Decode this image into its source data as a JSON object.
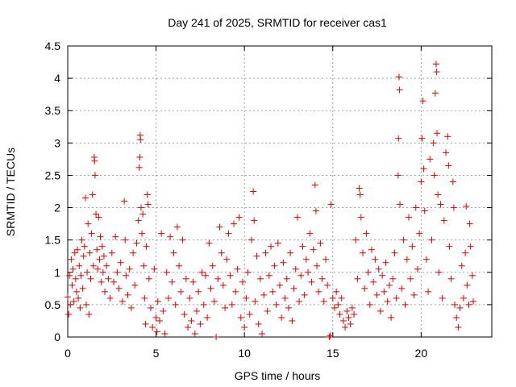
{
  "chart_data": {
    "type": "scatter",
    "title": "Day 241 of 2025, SRMTID for receiver cas1",
    "xlabel": "GPS time / hours",
    "ylabel": "SRMTID / TECUs",
    "xlim": [
      0,
      24
    ],
    "ylim": [
      0,
      4.5
    ],
    "xticks": [
      0,
      5,
      10,
      15,
      20
    ],
    "yticks": [
      0,
      0.5,
      1,
      1.5,
      2,
      2.5,
      3,
      3.5,
      4,
      4.5
    ],
    "ytick_labels": [
      "0",
      "0.5",
      "1",
      "1.5",
      "2",
      "2.5",
      "3",
      "3.5",
      "4",
      "4.5"
    ],
    "grid": true,
    "marker": "+",
    "marker_color": "#e00000",
    "series": [
      {
        "name": "SRMTID",
        "points": [
          [
            0.0,
            0.62
          ],
          [
            0.05,
            0.35
          ],
          [
            0.1,
            0.95
          ],
          [
            0.15,
            0.5
          ],
          [
            0.2,
            1.2
          ],
          [
            0.25,
            0.8
          ],
          [
            0.3,
            1.05
          ],
          [
            0.35,
            0.55
          ],
          [
            0.4,
            1.3
          ],
          [
            0.45,
            0.9
          ],
          [
            0.5,
            0.7
          ],
          [
            0.55,
            1.35
          ],
          [
            0.6,
            0.6
          ],
          [
            0.65,
            1.1
          ],
          [
            0.7,
            0.45
          ],
          [
            0.75,
            0.95
          ],
          [
            0.8,
            1.5
          ],
          [
            0.85,
            0.75
          ],
          [
            0.9,
            1.25
          ],
          [
            0.95,
            1.4
          ],
          [
            1.0,
            2.15
          ],
          [
            1.05,
            0.5
          ],
          [
            1.1,
            1.0
          ],
          [
            1.15,
            1.75
          ],
          [
            1.2,
            0.35
          ],
          [
            1.25,
            1.3
          ],
          [
            1.3,
            0.9
          ],
          [
            1.35,
            1.6
          ],
          [
            1.4,
            2.2
          ],
          [
            1.45,
            1.1
          ],
          [
            1.5,
            2.78
          ],
          [
            1.52,
            2.72
          ],
          [
            1.55,
            2.5
          ],
          [
            1.6,
            1.9
          ],
          [
            1.65,
            1.35
          ],
          [
            1.7,
            1.05
          ],
          [
            1.75,
            1.85
          ],
          [
            1.8,
            1.2
          ],
          [
            1.85,
            1.55
          ],
          [
            1.9,
            0.85
          ],
          [
            1.95,
            1.4
          ],
          [
            2.0,
            1.0
          ],
          [
            2.05,
            1.25
          ],
          [
            2.1,
            0.7
          ],
          [
            2.2,
            1.1
          ],
          [
            2.3,
            0.9
          ],
          [
            2.4,
            0.6
          ],
          [
            2.5,
            1.3
          ],
          [
            2.6,
            0.85
          ],
          [
            2.7,
            1.55
          ],
          [
            2.8,
            1.0
          ],
          [
            2.9,
            0.75
          ],
          [
            3.0,
            1.15
          ],
          [
            3.1,
            0.55
          ],
          [
            3.2,
            2.1
          ],
          [
            3.25,
            1.5
          ],
          [
            3.3,
            0.95
          ],
          [
            3.4,
            0.65
          ],
          [
            3.5,
            1.05
          ],
          [
            3.6,
            0.45
          ],
          [
            3.7,
            1.3
          ],
          [
            3.8,
            0.8
          ],
          [
            3.9,
            1.45
          ],
          [
            4.0,
            1.8
          ],
          [
            4.05,
            2.62
          ],
          [
            4.08,
            2.78
          ],
          [
            4.1,
            3.12
          ],
          [
            4.12,
            3.05
          ],
          [
            4.15,
            2.0
          ],
          [
            4.2,
            1.6
          ],
          [
            4.25,
            1.9
          ],
          [
            4.3,
            1.1
          ],
          [
            4.35,
            0.6
          ],
          [
            4.4,
            0.2
          ],
          [
            4.45,
            1.4
          ],
          [
            4.5,
            2.2
          ],
          [
            4.55,
            2.05
          ],
          [
            4.6,
            0.9
          ],
          [
            4.7,
            0.45
          ],
          [
            4.8,
            0.15
          ],
          [
            4.9,
            1.05
          ],
          [
            5.0,
            0.3
          ],
          [
            5.05,
            0.08
          ],
          [
            5.1,
            0.55
          ],
          [
            5.2,
            0.25
          ],
          [
            5.3,
            1.6
          ],
          [
            5.4,
            0.4
          ],
          [
            5.5,
            0.05
          ],
          [
            5.6,
            1.0
          ],
          [
            5.7,
            0.6
          ],
          [
            5.8,
            1.55
          ],
          [
            5.9,
            0.85
          ],
          [
            6.0,
            1.3
          ],
          [
            6.1,
            0.5
          ],
          [
            6.2,
            1.7
          ],
          [
            6.3,
            1.1
          ],
          [
            6.4,
            0.7
          ],
          [
            6.5,
            1.5
          ],
          [
            6.6,
            0.35
          ],
          [
            6.7,
            0.9
          ],
          [
            6.8,
            0.15
          ],
          [
            6.9,
            0.6
          ],
          [
            7.0,
            0.25
          ],
          [
            7.1,
            0.85
          ],
          [
            7.2,
            0.05
          ],
          [
            7.3,
            0.4
          ],
          [
            7.4,
            0.7
          ],
          [
            7.5,
            0.2
          ],
          [
            7.6,
            1.0
          ],
          [
            7.7,
            0.5
          ],
          [
            7.8,
            0.95
          ],
          [
            7.9,
            0.3
          ],
          [
            8.0,
            1.45
          ],
          [
            8.1,
            0.75
          ],
          [
            8.2,
            1.1
          ],
          [
            8.3,
            0.55
          ],
          [
            8.4,
            0.0
          ],
          [
            8.5,
            0.9
          ],
          [
            8.6,
            1.7
          ],
          [
            8.7,
            1.3
          ],
          [
            8.8,
            0.8
          ],
          [
            8.9,
            0.45
          ],
          [
            9.0,
            1.2
          ],
          [
            9.1,
            1.6
          ],
          [
            9.2,
            0.95
          ],
          [
            9.3,
            0.5
          ],
          [
            9.4,
            1.75
          ],
          [
            9.5,
            0.7
          ],
          [
            9.6,
            1.05
          ],
          [
            9.7,
            1.85
          ],
          [
            9.8,
            0.3
          ],
          [
            9.9,
            0.85
          ],
          [
            10.0,
            0.15
          ],
          [
            10.1,
            0.6
          ],
          [
            10.2,
            1.0
          ],
          [
            10.3,
            0.35
          ],
          [
            10.4,
            1.5
          ],
          [
            10.5,
            2.25
          ],
          [
            10.55,
            1.8
          ],
          [
            10.6,
            0.55
          ],
          [
            10.7,
            1.25
          ],
          [
            10.8,
            0.2
          ],
          [
            10.9,
            0.9
          ],
          [
            11.0,
            0.05
          ],
          [
            11.1,
            0.65
          ],
          [
            11.2,
            1.3
          ],
          [
            11.3,
            0.4
          ],
          [
            11.4,
            0.95
          ],
          [
            11.5,
            1.4
          ],
          [
            11.6,
            0.7
          ],
          [
            11.7,
            1.1
          ],
          [
            11.8,
            0.5
          ],
          [
            11.9,
            1.45
          ],
          [
            12.0,
            0.8
          ],
          [
            12.1,
            0.3
          ],
          [
            12.2,
            1.15
          ],
          [
            12.3,
            0.6
          ],
          [
            12.4,
            0.9
          ],
          [
            12.5,
            0.45
          ],
          [
            12.6,
            1.3
          ],
          [
            12.7,
            0.25
          ],
          [
            12.8,
            0.75
          ],
          [
            12.9,
            1.05
          ],
          [
            13.0,
            1.85
          ],
          [
            13.1,
            0.55
          ],
          [
            13.2,
            0.95
          ],
          [
            13.3,
            1.4
          ],
          [
            13.4,
            0.65
          ],
          [
            13.5,
            1.2
          ],
          [
            13.6,
            1.0
          ],
          [
            13.7,
            1.6
          ],
          [
            13.8,
            0.85
          ],
          [
            13.9,
            1.35
          ],
          [
            14.0,
            2.35
          ],
          [
            14.05,
            1.95
          ],
          [
            14.1,
            1.1
          ],
          [
            14.2,
            0.7
          ],
          [
            14.3,
            1.45
          ],
          [
            14.4,
            0.9
          ],
          [
            14.5,
            0.55
          ],
          [
            14.6,
            1.2
          ],
          [
            14.7,
            0.8
          ],
          [
            14.8,
            0.0
          ],
          [
            14.85,
            0.02
          ],
          [
            14.9,
            2.05
          ],
          [
            15.0,
            0.6
          ],
          [
            15.1,
            0.45
          ],
          [
            15.2,
            0.7
          ],
          [
            15.3,
            0.5
          ],
          [
            15.4,
            0.35
          ],
          [
            15.5,
            0.6
          ],
          [
            15.6,
            0.25
          ],
          [
            15.7,
            0.15
          ],
          [
            15.8,
            0.4
          ],
          [
            15.9,
            0.3
          ],
          [
            16.0,
            0.2
          ],
          [
            16.1,
            0.45
          ],
          [
            16.2,
            0.35
          ],
          [
            16.3,
            1.5
          ],
          [
            16.4,
            0.9
          ],
          [
            16.5,
            2.3
          ],
          [
            16.55,
            2.2
          ],
          [
            16.6,
            1.85
          ],
          [
            16.7,
            1.3
          ],
          [
            16.8,
            0.75
          ],
          [
            16.9,
            1.6
          ],
          [
            17.0,
            1.0
          ],
          [
            17.1,
            0.5
          ],
          [
            17.2,
            1.35
          ],
          [
            17.3,
            0.85
          ],
          [
            17.4,
            1.2
          ],
          [
            17.5,
            0.65
          ],
          [
            17.6,
            1.05
          ],
          [
            17.7,
            0.4
          ],
          [
            17.8,
            0.95
          ],
          [
            17.9,
            0.7
          ],
          [
            18.0,
            1.15
          ],
          [
            18.1,
            0.55
          ],
          [
            18.2,
            0.8
          ],
          [
            18.3,
            0.3
          ],
          [
            18.4,
            0.9
          ],
          [
            18.5,
            1.3
          ],
          [
            18.6,
            0.6
          ],
          [
            18.7,
            2.5
          ],
          [
            18.72,
            3.07
          ],
          [
            18.75,
            4.02
          ],
          [
            18.78,
            3.82
          ],
          [
            18.8,
            2.05
          ],
          [
            18.9,
            0.75
          ],
          [
            19.0,
            1.5
          ],
          [
            19.1,
            0.5
          ],
          [
            19.2,
            1.2
          ],
          [
            19.3,
            1.85
          ],
          [
            19.4,
            0.9
          ],
          [
            19.5,
            1.4
          ],
          [
            19.6,
            0.65
          ],
          [
            19.7,
            2.0
          ],
          [
            19.8,
            1.05
          ],
          [
            19.9,
            1.6
          ],
          [
            20.0,
            2.4
          ],
          [
            20.05,
            3.07
          ],
          [
            20.1,
            3.65
          ],
          [
            20.15,
            2.6
          ],
          [
            20.2,
            1.95
          ],
          [
            20.3,
            1.2
          ],
          [
            20.4,
            0.7
          ],
          [
            20.5,
            2.75
          ],
          [
            20.6,
            1.5
          ],
          [
            20.7,
            3.0
          ],
          [
            20.75,
            2.5
          ],
          [
            20.8,
            3.77
          ],
          [
            20.85,
            4.22
          ],
          [
            20.88,
            4.1
          ],
          [
            20.9,
            3.15
          ],
          [
            20.95,
            2.2
          ],
          [
            21.0,
            1.0
          ],
          [
            21.1,
            2.05
          ],
          [
            21.2,
            0.6
          ],
          [
            21.3,
            1.8
          ],
          [
            21.4,
            2.85
          ],
          [
            21.5,
            3.1
          ],
          [
            21.55,
            2.65
          ],
          [
            21.6,
            1.4
          ],
          [
            21.7,
            0.9
          ],
          [
            21.8,
            2.4
          ],
          [
            21.85,
            2.0
          ],
          [
            21.9,
            0.5
          ],
          [
            22.0,
            0.3
          ],
          [
            22.1,
            0.15
          ],
          [
            22.2,
            0.45
          ],
          [
            22.3,
            1.1
          ],
          [
            22.4,
            0.6
          ],
          [
            22.5,
            1.3
          ],
          [
            22.55,
            2.02
          ],
          [
            22.6,
            0.8
          ],
          [
            22.7,
            0.5
          ],
          [
            22.75,
            1.75
          ],
          [
            22.8,
            1.4
          ],
          [
            22.9,
            0.95
          ],
          [
            22.95,
            0.55
          ]
        ]
      }
    ]
  }
}
